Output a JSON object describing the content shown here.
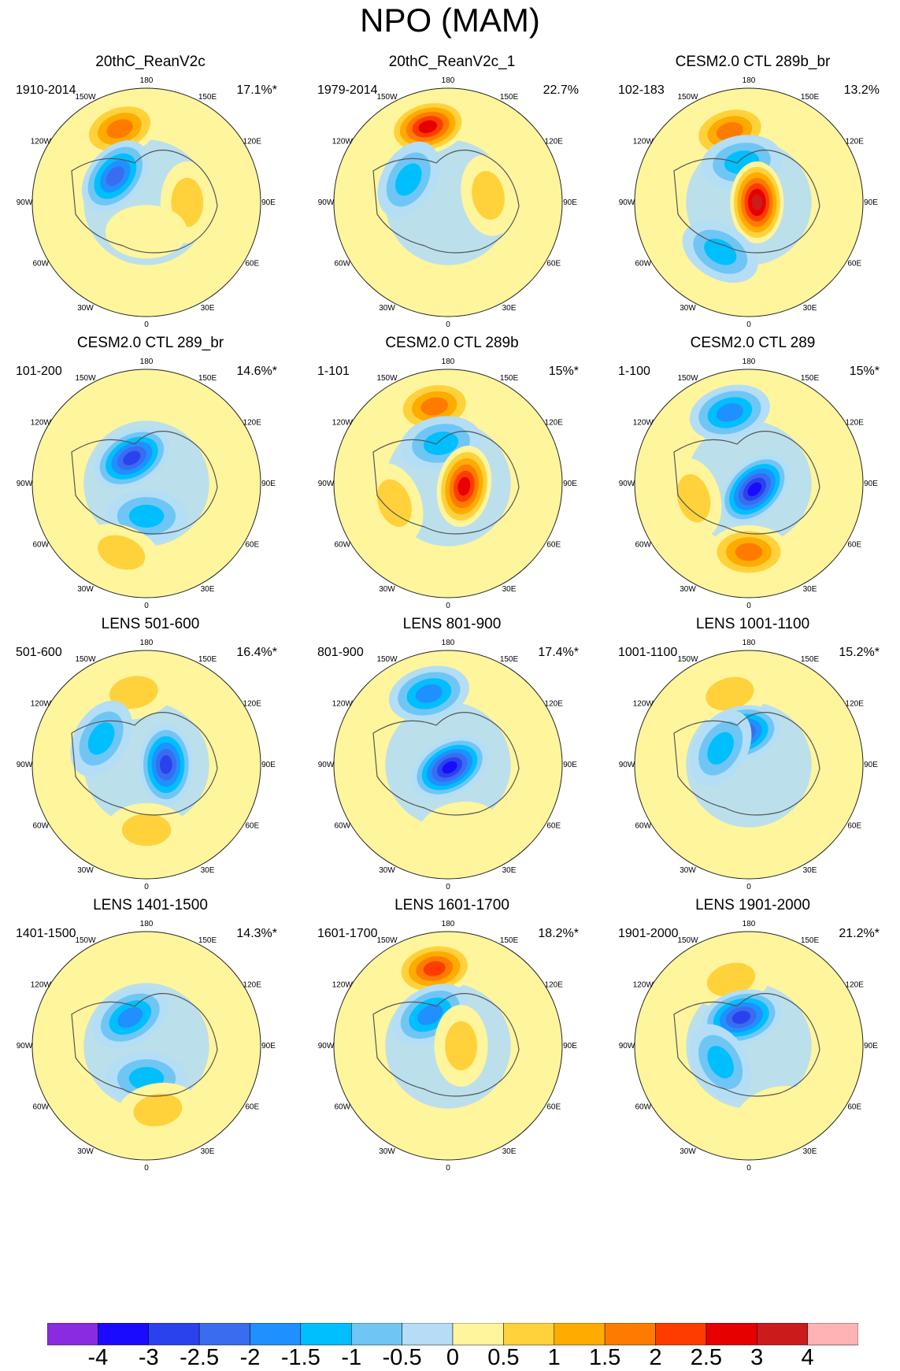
{
  "title": "NPO (MAM)",
  "chart_data": {
    "type": "heatmap",
    "projection": "north-polar-stereographic",
    "longitude_labels": [
      "180",
      "150W",
      "120W",
      "90W",
      "60W",
      "30W",
      "0",
      "30E",
      "60E",
      "90E",
      "120E",
      "150E"
    ],
    "panels": [
      {
        "title": "20thC_ReanV2c",
        "years": "1910-2014",
        "pct": "17.1%*",
        "anomalies": [
          {
            "lon": -160,
            "lat": 42,
            "value": 2.0
          },
          {
            "lon": -130,
            "lat": 65,
            "value": -2.5
          },
          {
            "lon": 90,
            "lat": 65,
            "value": 1.0
          },
          {
            "lon": 0,
            "lat": 72,
            "value": 0.5
          }
        ]
      },
      {
        "title": "20thC_ReanV2c_1",
        "years": "1979-2014",
        "pct": "22.7%",
        "anomalies": [
          {
            "lon": -165,
            "lat": 42,
            "value": 3.0
          },
          {
            "lon": -120,
            "lat": 62,
            "value": -1.5
          },
          {
            "lon": 100,
            "lat": 65,
            "value": 1.0
          }
        ]
      },
      {
        "title": "CESM2.0 CTL 289b_br",
        "years": "102-183",
        "pct": "13.2%",
        "anomalies": [
          {
            "lon": -165,
            "lat": 45,
            "value": 2.0
          },
          {
            "lon": -170,
            "lat": 65,
            "value": -1.5
          },
          {
            "lon": 90,
            "lat": 85,
            "value": 4.0
          },
          {
            "lon": -30,
            "lat": 55,
            "value": -1.5
          }
        ]
      },
      {
        "title": "CESM2.0 CTL 289_br",
        "years": "101-200",
        "pct": "14.6%*",
        "anomalies": [
          {
            "lon": -150,
            "lat": 72,
            "value": -3.0
          },
          {
            "lon": 0,
            "lat": 70,
            "value": -1.5
          },
          {
            "lon": -20,
            "lat": 45,
            "value": 1.0
          }
        ]
      },
      {
        "title": "CESM2.0 CTL 289b",
        "years": "1-101",
        "pct": "15%*",
        "anomalies": [
          {
            "lon": -170,
            "lat": 42,
            "value": 2.0
          },
          {
            "lon": -170,
            "lat": 65,
            "value": -1.5
          },
          {
            "lon": 80,
            "lat": 80,
            "value": 3.0
          },
          {
            "lon": -70,
            "lat": 55,
            "value": 1.0
          }
        ]
      },
      {
        "title": "CESM2.0 CTL 289",
        "years": "1-100",
        "pct": "15%*",
        "anomalies": [
          {
            "lon": -165,
            "lat": 45,
            "value": -2.0
          },
          {
            "lon": 45,
            "lat": 85,
            "value": -4.0
          },
          {
            "lon": 0,
            "lat": 48,
            "value": 2.0
          },
          {
            "lon": -75,
            "lat": 55,
            "value": 1.0
          }
        ]
      },
      {
        "title": "LENS 501-600",
        "years": "501-600",
        "pct": "16.4%*",
        "anomalies": [
          {
            "lon": -170,
            "lat": 45,
            "value": 1.0
          },
          {
            "lon": 90,
            "lat": 78,
            "value": -3.0
          },
          {
            "lon": -120,
            "lat": 58,
            "value": -1.5
          },
          {
            "lon": 0,
            "lat": 50,
            "value": 1.0
          }
        ]
      },
      {
        "title": "LENS 801-900",
        "years": "801-900",
        "pct": "17.4%*",
        "anomalies": [
          {
            "lon": -165,
            "lat": 45,
            "value": -2.0
          },
          {
            "lon": 30,
            "lat": 88,
            "value": -3.5
          },
          {
            "lon": 10,
            "lat": 50,
            "value": 0.5
          }
        ]
      },
      {
        "title": "LENS 1001-1100",
        "years": "1001-1100",
        "pct": "15.2%*",
        "anomalies": [
          {
            "lon": -165,
            "lat": 45,
            "value": 1.0
          },
          {
            "lon": -165,
            "lat": 70,
            "value": -3.0
          },
          {
            "lon": -120,
            "lat": 70,
            "value": -1.5
          }
        ]
      },
      {
        "title": "LENS 1401-1500",
        "years": "1401-1500",
        "pct": "14.3%*",
        "anomalies": [
          {
            "lon": -150,
            "lat": 70,
            "value": -2.0
          },
          {
            "lon": 0,
            "lat": 70,
            "value": -1.5
          },
          {
            "lon": 10,
            "lat": 50,
            "value": 1.0
          }
        ]
      },
      {
        "title": "LENS 1601-1700",
        "years": "1601-1700",
        "pct": "18.2%*",
        "anomalies": [
          {
            "lon": -170,
            "lat": 42,
            "value": 2.5
          },
          {
            "lon": -150,
            "lat": 68,
            "value": -2.0
          },
          {
            "lon": 90,
            "lat": 82,
            "value": 1.0
          }
        ]
      },
      {
        "title": "LENS 1901-2000",
        "years": "1901-2000",
        "pct": "21.2%*",
        "anomalies": [
          {
            "lon": -165,
            "lat": 48,
            "value": 1.0
          },
          {
            "lon": -165,
            "lat": 72,
            "value": -3.0
          },
          {
            "lon": -60,
            "lat": 70,
            "value": -1.5
          },
          {
            "lon": 20,
            "lat": 45,
            "value": 0.5
          }
        ]
      }
    ],
    "colorbar": {
      "labels": [
        "-4",
        "-3",
        "-2.5",
        "-2",
        "-1.5",
        "-1",
        "-0.5",
        "0",
        "0.5",
        "1",
        "1.5",
        "2",
        "2.5",
        "3",
        "4"
      ],
      "colors": [
        "#8a2be2",
        "#1a0bff",
        "#2a42ee",
        "#3a6cf0",
        "#1e90ff",
        "#00bfff",
        "#6fc6f4",
        "#b4def5",
        "#fff59d",
        "#ffd23c",
        "#ffab00",
        "#ff7b00",
        "#ff3c00",
        "#e60000",
        "#cc1b1b",
        "#ffb3b3"
      ],
      "levels": [
        -4,
        -3,
        -2.5,
        -2,
        -1.5,
        -1,
        -0.5,
        0,
        0.5,
        1,
        1.5,
        2,
        2.5,
        3,
        4
      ]
    }
  }
}
